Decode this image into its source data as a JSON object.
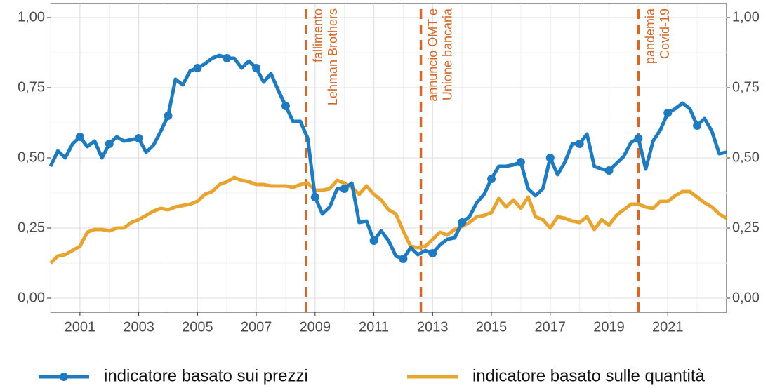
{
  "chart_data": {
    "type": "line",
    "x": [
      2000,
      2000.25,
      2000.5,
      2000.75,
      2001,
      2001.25,
      2001.5,
      2001.75,
      2002,
      2002.25,
      2002.5,
      2002.75,
      2003,
      2003.25,
      2003.5,
      2003.75,
      2004,
      2004.25,
      2004.5,
      2004.75,
      2005,
      2005.25,
      2005.5,
      2005.75,
      2006,
      2006.25,
      2006.5,
      2006.75,
      2007,
      2007.25,
      2007.5,
      2007.75,
      2008,
      2008.25,
      2008.5,
      2008.75,
      2009,
      2009.25,
      2009.5,
      2009.75,
      2010,
      2010.25,
      2010.5,
      2010.75,
      2011,
      2011.25,
      2011.5,
      2011.75,
      2012,
      2012.25,
      2012.5,
      2012.75,
      2013,
      2013.25,
      2013.5,
      2013.75,
      2014,
      2014.25,
      2014.5,
      2014.75,
      2015,
      2015.25,
      2015.5,
      2015.75,
      2016,
      2016.25,
      2016.5,
      2016.75,
      2017,
      2017.25,
      2017.5,
      2017.75,
      2018,
      2018.25,
      2018.5,
      2018.75,
      2019,
      2019.25,
      2019.5,
      2019.75,
      2020,
      2020.25,
      2020.5,
      2020.75,
      2021,
      2021.25,
      2021.5,
      2021.75,
      2022,
      2022.25,
      2022.5,
      2022.75,
      2023
    ],
    "series": [
      {
        "name": "indicatore basato sui prezzi",
        "color": "#1f7bbf",
        "markers": true,
        "values": [
          0.47,
          0.525,
          0.5,
          0.55,
          0.575,
          0.54,
          0.56,
          0.5,
          0.55,
          0.575,
          0.56,
          0.565,
          0.57,
          0.52,
          0.545,
          0.595,
          0.65,
          0.78,
          0.76,
          0.81,
          0.82,
          0.835,
          0.855,
          0.865,
          0.855,
          0.855,
          0.82,
          0.845,
          0.82,
          0.77,
          0.8,
          0.74,
          0.685,
          0.63,
          0.63,
          0.57,
          0.36,
          0.3,
          0.325,
          0.39,
          0.39,
          0.41,
          0.27,
          0.275,
          0.205,
          0.24,
          0.205,
          0.15,
          0.14,
          0.18,
          0.155,
          0.17,
          0.16,
          0.19,
          0.21,
          0.215,
          0.27,
          0.29,
          0.34,
          0.37,
          0.425,
          0.47,
          0.47,
          0.475,
          0.485,
          0.39,
          0.365,
          0.39,
          0.5,
          0.44,
          0.485,
          0.55,
          0.55,
          0.585,
          0.47,
          0.46,
          0.455,
          0.48,
          0.505,
          0.555,
          0.57,
          0.46,
          0.56,
          0.6,
          0.66,
          0.675,
          0.695,
          0.675,
          0.615,
          0.64,
          0.595,
          0.515,
          0.52
        ]
      },
      {
        "name": "indicatore basato sulle quantità",
        "color": "#e8a430",
        "markers": false,
        "values": [
          0.125,
          0.15,
          0.155,
          0.17,
          0.185,
          0.235,
          0.245,
          0.245,
          0.24,
          0.25,
          0.25,
          0.27,
          0.28,
          0.295,
          0.31,
          0.32,
          0.315,
          0.325,
          0.33,
          0.335,
          0.345,
          0.37,
          0.38,
          0.405,
          0.415,
          0.43,
          0.42,
          0.415,
          0.405,
          0.405,
          0.4,
          0.4,
          0.4,
          0.395,
          0.405,
          0.41,
          0.385,
          0.385,
          0.39,
          0.42,
          0.41,
          0.395,
          0.37,
          0.4,
          0.37,
          0.35,
          0.315,
          0.3,
          0.24,
          0.185,
          0.18,
          0.185,
          0.21,
          0.235,
          0.225,
          0.245,
          0.255,
          0.27,
          0.29,
          0.295,
          0.305,
          0.355,
          0.325,
          0.35,
          0.32,
          0.36,
          0.29,
          0.28,
          0.25,
          0.29,
          0.285,
          0.275,
          0.27,
          0.29,
          0.245,
          0.28,
          0.26,
          0.295,
          0.315,
          0.335,
          0.335,
          0.325,
          0.32,
          0.345,
          0.345,
          0.365,
          0.38,
          0.38,
          0.36,
          0.34,
          0.325,
          0.3,
          0.285
        ]
      }
    ],
    "xlim": [
      2000,
      2023
    ],
    "xticks": [
      2001,
      2003,
      2005,
      2007,
      2009,
      2011,
      2013,
      2015,
      2017,
      2019,
      2021
    ],
    "ylim": [
      -0.05,
      1.05
    ],
    "yticks": [
      {
        "value": 0,
        "label": "0,00"
      },
      {
        "value": 0.25,
        "label": "0,25"
      },
      {
        "value": 0.5,
        "label": "0,50"
      },
      {
        "value": 0.75,
        "label": "0,75"
      },
      {
        "value": 1,
        "label": "1,00"
      }
    ],
    "y2lim": [
      -0.05,
      1.05
    ],
    "y2ticks": [
      {
        "value": 0,
        "label": "0,00"
      },
      {
        "value": 0.25,
        "label": "0,25"
      },
      {
        "value": 0.5,
        "label": "0,50"
      },
      {
        "value": 0.75,
        "label": "0,75"
      },
      {
        "value": 1,
        "label": "1,00"
      }
    ],
    "grid": true,
    "annotations": [
      {
        "x": 2008.7,
        "color": "#d2692a",
        "text": [
          "fallimento",
          "Lehman Brothers"
        ]
      },
      {
        "x": 2012.6,
        "color": "#d2692a",
        "text": [
          "annuncio OMT e",
          "Unione bancaria"
        ]
      },
      {
        "x": 2020.0,
        "color": "#d2692a",
        "text": [
          "pandemia",
          "Covid-19"
        ]
      }
    ],
    "legend": "bottom"
  }
}
